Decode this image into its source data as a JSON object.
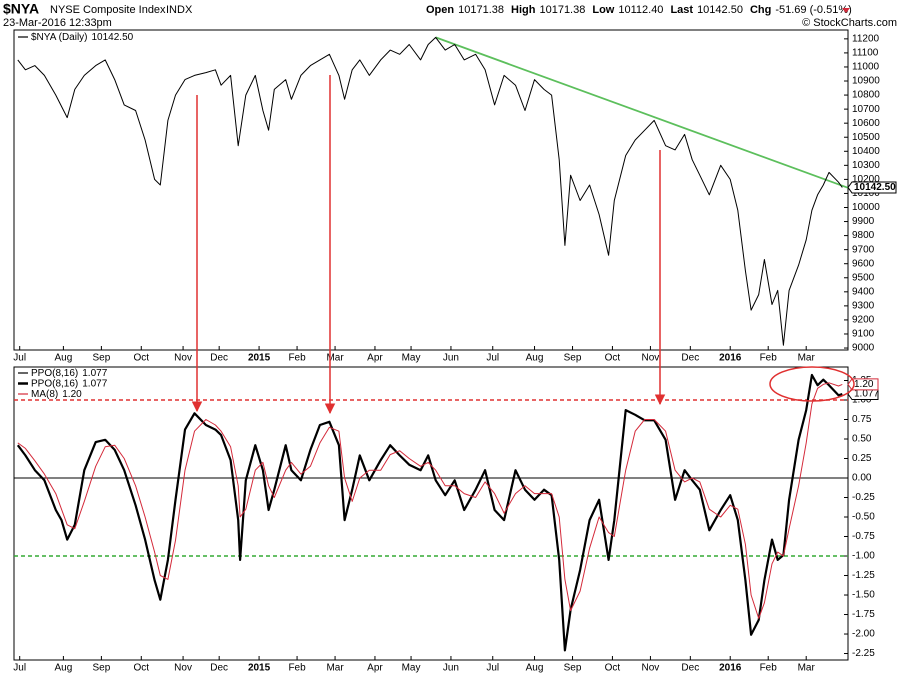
{
  "header": {
    "symbol": "$NYA",
    "name": "NYSE Composite Index",
    "exchange": "INDX",
    "date": "23-Mar-2016 12:33pm",
    "quote": [
      {
        "label": "Open",
        "value": "10171.38"
      },
      {
        "label": "High",
        "value": "10171.38"
      },
      {
        "label": "Low",
        "value": "10112.40"
      },
      {
        "label": "Last",
        "value": "10142.50"
      },
      {
        "label": "Chg",
        "value": "-51.69 (-0.51%)"
      }
    ],
    "copyright": "© StockCharts.com"
  },
  "chart_data": [
    {
      "type": "line",
      "x": [
        2,
        6,
        11,
        16,
        22,
        28,
        32,
        37,
        43,
        48,
        53,
        58,
        64,
        69,
        74,
        77,
        81,
        85,
        90,
        95,
        101,
        106,
        109,
        114,
        118,
        122,
        127,
        131,
        134,
        137,
        143,
        146,
        151,
        156,
        161,
        166,
        171,
        174,
        178,
        182,
        187,
        193,
        198,
        203,
        208,
        214,
        218,
        222,
        227,
        232,
        237,
        243,
        248,
        253,
        258,
        264,
        269,
        274,
        279,
        283,
        287,
        290,
        293,
        298,
        303,
        308,
        313,
        316,
        322,
        327,
        332,
        337,
        343,
        348,
        353,
        357,
        361,
        366,
        372,
        377,
        381,
        385,
        388,
        392,
        395,
        399,
        402,
        405,
        408,
        413,
        417,
        420,
        423,
        426,
        429,
        434,
        436
      ],
      "series": [
        {
          "name": "$NYA (Daily)",
          "last_label": "10142.50",
          "color": "#000000",
          "values": [
            11050,
            10980,
            11010,
            10940,
            10800,
            10640,
            10840,
            10940,
            11010,
            11050,
            10910,
            10730,
            10690,
            10480,
            10200,
            10160,
            10620,
            10800,
            10910,
            10940,
            10960,
            10980,
            10870,
            10940,
            10440,
            10800,
            10940,
            10690,
            10550,
            10840,
            10910,
            10770,
            10940,
            11010,
            11050,
            11090,
            10940,
            10770,
            10980,
            11050,
            10940,
            11050,
            11120,
            11090,
            11160,
            11050,
            11160,
            11210,
            11120,
            11160,
            11050,
            11090,
            10980,
            10730,
            10940,
            10870,
            10690,
            10910,
            10840,
            10800,
            10340,
            9730,
            10230,
            10050,
            10160,
            9950,
            9660,
            10050,
            10370,
            10480,
            10550,
            10620,
            10440,
            10410,
            10520,
            10340,
            10230,
            10090,
            10300,
            10200,
            9980,
            9550,
            9270,
            9380,
            9630,
            9310,
            9410,
            9020,
            9410,
            9590,
            9770,
            9980,
            10090,
            10160,
            10250,
            10180,
            10142.5
          ]
        }
      ],
      "trendline": {
        "x": [
          222,
          439
        ],
        "values": [
          11210,
          10140
        ],
        "color": "#5cbf5c"
      },
      "xlim": [
        0,
        439
      ],
      "xticks": [
        {
          "value": 3,
          "label": "Jul"
        },
        {
          "value": 26,
          "label": "Aug"
        },
        {
          "value": 46,
          "label": "Sep"
        },
        {
          "value": 67,
          "label": "Oct"
        },
        {
          "value": 89,
          "label": "Nov"
        },
        {
          "value": 108,
          "label": "Dec"
        },
        {
          "value": 129,
          "label": "2015"
        },
        {
          "value": 149,
          "label": "Feb"
        },
        {
          "value": 169,
          "label": "Mar"
        },
        {
          "value": 190,
          "label": "Apr"
        },
        {
          "value": 209,
          "label": "May"
        },
        {
          "value": 230,
          "label": "Jun"
        },
        {
          "value": 252,
          "label": "Jul"
        },
        {
          "value": 274,
          "label": "Aug"
        },
        {
          "value": 294,
          "label": "Sep"
        },
        {
          "value": 315,
          "label": "Oct"
        },
        {
          "value": 335,
          "label": "Nov"
        },
        {
          "value": 356,
          "label": "Dec"
        },
        {
          "value": 377,
          "label": "2016"
        },
        {
          "value": 397,
          "label": "Feb"
        },
        {
          "value": 417,
          "label": "Mar"
        }
      ],
      "ylim": [
        8986,
        11263
      ],
      "yticks": [
        9000,
        9100,
        9200,
        9300,
        9400,
        9500,
        9600,
        9700,
        9800,
        9900,
        10000,
        10100,
        10200,
        10300,
        10400,
        10500,
        10600,
        10700,
        10800,
        10900,
        11000,
        11100,
        11200
      ],
      "grid": false
    },
    {
      "type": "line",
      "x": [
        2,
        6,
        11,
        16,
        22,
        25,
        28,
        32,
        37,
        43,
        48,
        53,
        58,
        64,
        69,
        74,
        77,
        81,
        85,
        90,
        95,
        101,
        106,
        109,
        114,
        118,
        119,
        122,
        127,
        131,
        134,
        137,
        143,
        146,
        151,
        156,
        161,
        166,
        171,
        174,
        178,
        182,
        187,
        193,
        198,
        203,
        208,
        214,
        218,
        222,
        227,
        232,
        237,
        243,
        248,
        253,
        258,
        264,
        269,
        274,
        279,
        283,
        287,
        290,
        293,
        298,
        303,
        308,
        313,
        316,
        322,
        327,
        332,
        337,
        343,
        348,
        353,
        357,
        361,
        366,
        372,
        377,
        381,
        385,
        388,
        392,
        395,
        399,
        402,
        405,
        408,
        413,
        417,
        420,
        423,
        426,
        429,
        434,
        436
      ],
      "series": [
        {
          "name": "PPO(8,16)",
          "last_label": "1.077",
          "color": "#000000",
          "values": [
            0.42,
            0.29,
            0.1,
            -0.03,
            -0.41,
            -0.54,
            -0.79,
            -0.6,
            0.1,
            0.46,
            0.49,
            0.36,
            0.1,
            -0.35,
            -0.79,
            -1.31,
            -1.56,
            -1.05,
            -0.28,
            0.62,
            0.83,
            0.68,
            0.62,
            0.55,
            0.23,
            -0.54,
            -1.05,
            -0.03,
            0.42,
            0.1,
            -0.41,
            -0.15,
            0.42,
            0.1,
            -0.03,
            0.36,
            0.68,
            0.72,
            0.42,
            -0.54,
            -0.15,
            0.29,
            -0.03,
            0.23,
            0.42,
            0.29,
            0.17,
            0.1,
            0.29,
            -0.03,
            -0.22,
            -0.03,
            -0.41,
            -0.15,
            0.1,
            -0.41,
            -0.54,
            0.1,
            -0.15,
            -0.28,
            -0.15,
            -0.22,
            -1.05,
            -2.21,
            -1.69,
            -1.18,
            -0.54,
            -0.28,
            -1.05,
            -0.54,
            0.87,
            0.81,
            0.74,
            0.74,
            0.49,
            -0.28,
            0.1,
            -0.03,
            -0.15,
            -0.67,
            -0.41,
            -0.22,
            -0.54,
            -1.31,
            -2.01,
            -1.82,
            -1.31,
            -0.79,
            -1.05,
            -0.99,
            -0.28,
            0.49,
            0.87,
            1.32,
            1.19,
            1.26,
            1.19,
            1.06,
            1.077
          ]
        },
        {
          "name": "MA(8)",
          "last_label": "1.20",
          "color": "#d42a3a",
          "values": [
            0.45,
            0.38,
            0.22,
            0.05,
            -0.2,
            -0.4,
            -0.6,
            -0.65,
            -0.3,
            0.15,
            0.4,
            0.42,
            0.25,
            -0.1,
            -0.5,
            -0.95,
            -1.25,
            -1.3,
            -0.8,
            0.1,
            0.6,
            0.75,
            0.68,
            0.6,
            0.4,
            -0.1,
            -0.5,
            -0.4,
            0.1,
            0.2,
            -0.1,
            -0.25,
            0.1,
            0.2,
            0.05,
            0.15,
            0.45,
            0.65,
            0.6,
            0.0,
            -0.3,
            0.0,
            0.1,
            0.1,
            0.3,
            0.35,
            0.25,
            0.15,
            0.2,
            0.1,
            -0.1,
            -0.1,
            -0.2,
            -0.25,
            -0.05,
            -0.2,
            -0.45,
            -0.2,
            -0.1,
            -0.2,
            -0.2,
            -0.2,
            -0.5,
            -1.3,
            -1.7,
            -1.45,
            -0.9,
            -0.5,
            -0.7,
            -0.75,
            0.1,
            0.6,
            0.75,
            0.75,
            0.6,
            0.1,
            -0.05,
            0.0,
            -0.05,
            -0.4,
            -0.5,
            -0.35,
            -0.4,
            -0.85,
            -1.5,
            -1.8,
            -1.6,
            -1.1,
            -0.95,
            -1.0,
            -0.65,
            -0.1,
            0.45,
            0.95,
            1.15,
            1.2,
            1.22,
            1.18,
            1.2
          ]
        }
      ],
      "hlines": [
        {
          "value": 1,
          "color": "#e03030",
          "dashed": true
        },
        {
          "value": 0,
          "color": "#000000",
          "dashed": false
        },
        {
          "value": -1,
          "color": "#33aa33",
          "dashed": true
        }
      ],
      "xlim": [
        0,
        439
      ],
      "xticks": [
        {
          "value": 3,
          "label": "Jul"
        },
        {
          "value": 26,
          "label": "Aug"
        },
        {
          "value": 46,
          "label": "Sep"
        },
        {
          "value": 67,
          "label": "Oct"
        },
        {
          "value": 89,
          "label": "Nov"
        },
        {
          "value": 108,
          "label": "Dec"
        },
        {
          "value": 129,
          "label": "2015"
        },
        {
          "value": 149,
          "label": "Feb"
        },
        {
          "value": 169,
          "label": "Mar"
        },
        {
          "value": 190,
          "label": "Apr"
        },
        {
          "value": 209,
          "label": "May"
        },
        {
          "value": 230,
          "label": "Jun"
        },
        {
          "value": 252,
          "label": "Jul"
        },
        {
          "value": 274,
          "label": "Aug"
        },
        {
          "value": 294,
          "label": "Sep"
        },
        {
          "value": 315,
          "label": "Oct"
        },
        {
          "value": 335,
          "label": "Nov"
        },
        {
          "value": 356,
          "label": "Dec"
        },
        {
          "value": 377,
          "label": "2016"
        },
        {
          "value": 397,
          "label": "Feb"
        },
        {
          "value": 417,
          "label": "Mar"
        }
      ],
      "ylim": [
        -2.333,
        1.423
      ],
      "yticks": [
        1.25,
        {
          "value": 1,
          "label": "1.00"
        },
        0.75,
        {
          "value": 0.5,
          "label": "0.50"
        },
        0.25,
        {
          "value": 0,
          "label": "0.00"
        },
        -0.25,
        {
          "value": -0.5,
          "label": "-0.50"
        },
        -0.75,
        {
          "value": -1,
          "label": "-1.00"
        },
        -1.25,
        {
          "value": -1.5,
          "label": "-1.50"
        },
        -1.75,
        {
          "value": -2,
          "label": "-2.00"
        },
        -2.25
      ],
      "grid": false
    }
  ]
}
